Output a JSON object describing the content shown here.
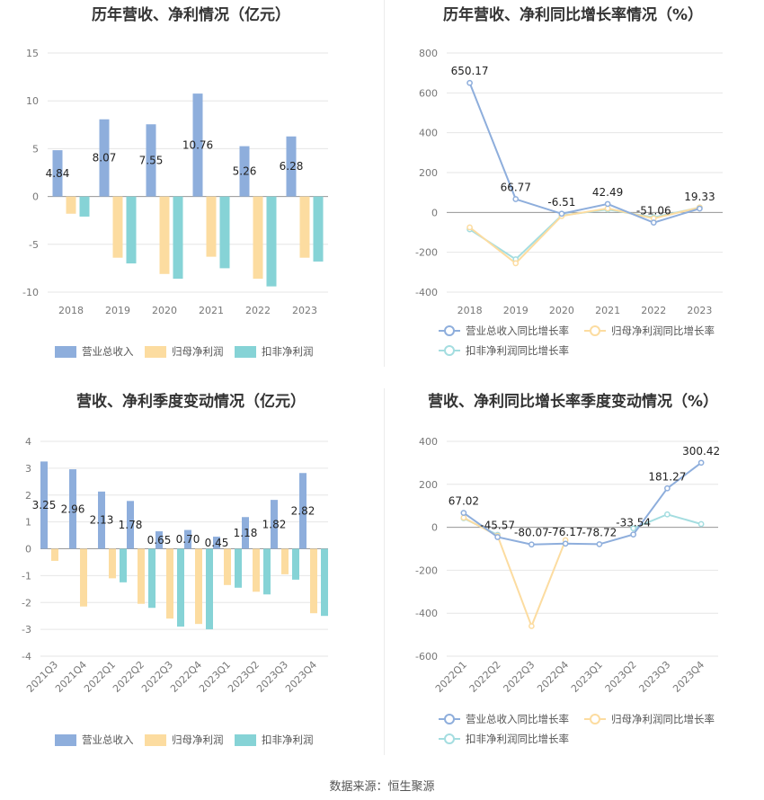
{
  "footer": {
    "source": "数据来源：恒生聚源"
  },
  "colors": {
    "revenue": "#8eaedc",
    "net_profit": "#fcdca0",
    "deducted": "#86d3d6",
    "revenue_line": "#8eaedc",
    "net_line": "#fcdca0",
    "deducted_line": "#a4dde0"
  },
  "chart_data": [
    {
      "type": "bar",
      "title": "历年营收、净利情况（亿元）",
      "categories": [
        "2018",
        "2019",
        "2020",
        "2021",
        "2022",
        "2023"
      ],
      "ylim": [
        -10,
        15
      ],
      "yticks": [
        -10,
        -5,
        0,
        5,
        10,
        15
      ],
      "series": [
        {
          "name": "营业总收入",
          "values": [
            4.84,
            8.07,
            7.55,
            10.76,
            5.26,
            6.28
          ],
          "labels": [
            "4.84",
            "8.07",
            "7.55",
            "10.76",
            "5.26",
            "6.28"
          ]
        },
        {
          "name": "归母净利润",
          "values": [
            -1.8,
            -6.4,
            -8.1,
            -6.3,
            -8.6,
            -6.4
          ]
        },
        {
          "name": "扣非净利润",
          "values": [
            -2.1,
            -7.0,
            -8.6,
            -7.5,
            -9.4,
            -6.8
          ]
        }
      ],
      "legend": "bottom"
    },
    {
      "type": "line",
      "title": "历年营收、净利同比增长率情况（%）",
      "categories": [
        "2018",
        "2019",
        "2020",
        "2021",
        "2022",
        "2023"
      ],
      "ylim": [
        -400,
        800
      ],
      "yticks": [
        -400,
        -200,
        0,
        200,
        400,
        600,
        800
      ],
      "series": [
        {
          "name": "营业总收入同比增长率",
          "values": [
            650.17,
            66.77,
            -6.51,
            42.49,
            -51.06,
            19.33
          ],
          "labels": [
            "650.17",
            "66.77",
            "-6.51",
            "42.49",
            "-51.06",
            "19.33"
          ]
        },
        {
          "name": "归母净利润同比增长率",
          "values": [
            -75,
            -255,
            -18,
            20,
            -30,
            25
          ]
        },
        {
          "name": "扣非净利润同比增长率",
          "values": [
            -85,
            -235,
            -15,
            15,
            -25,
            25
          ]
        }
      ],
      "legend": "bottom"
    },
    {
      "type": "bar",
      "title": "营收、净利季度变动情况（亿元）",
      "categories": [
        "2021Q3",
        "2021Q4",
        "2022Q1",
        "2022Q2",
        "2022Q3",
        "2022Q4",
        "2023Q1",
        "2023Q2",
        "2023Q3",
        "2023Q4"
      ],
      "ylim": [
        -4,
        4
      ],
      "yticks": [
        -4,
        -3,
        -2,
        -1,
        0,
        1,
        2,
        3,
        4
      ],
      "series": [
        {
          "name": "营业总收入",
          "values": [
            3.25,
            2.96,
            2.13,
            1.78,
            0.65,
            0.7,
            0.45,
            1.18,
            1.82,
            2.82
          ],
          "labels": [
            "3.25",
            "2.96",
            "2.13",
            "1.78",
            "0.65",
            "0.70",
            "0.45",
            "1.18",
            "1.82",
            "2.82"
          ]
        },
        {
          "name": "归母净利润",
          "values": [
            -0.45,
            -2.15,
            -1.1,
            -2.05,
            -2.6,
            -2.8,
            -1.35,
            -1.6,
            -0.95,
            -2.4
          ]
        },
        {
          "name": "扣非净利润",
          "values": [
            0,
            0,
            -1.25,
            -2.2,
            -2.9,
            -3.0,
            -1.45,
            -1.7,
            -1.15,
            -2.5
          ]
        }
      ],
      "legend": "bottom"
    },
    {
      "type": "line",
      "title": "营收、净利同比增长率季度变动情况（%）",
      "categories": [
        "2022Q1",
        "2022Q2",
        "2022Q3",
        "2022Q4",
        "2023Q1",
        "2023Q2",
        "2023Q3",
        "2023Q4"
      ],
      "ylim": [
        -600,
        400
      ],
      "yticks": [
        -600,
        -400,
        -200,
        0,
        200,
        400
      ],
      "series": [
        {
          "name": "营业总收入同比增长率",
          "values": [
            67.02,
            -45.57,
            -80.07,
            -76.17,
            -78.72,
            -33.54,
            181.27,
            300.42
          ],
          "labels": [
            "67.02",
            "-45.57",
            "-80.07",
            "-76.17",
            "-78.72",
            "-33.54",
            "181.27",
            "300.42"
          ]
        },
        {
          "name": "归母净利润同比增长率",
          "values": [
            45,
            -40,
            -460,
            -60,
            null,
            null,
            null,
            null
          ]
        },
        {
          "name": "扣非净利润同比增长率",
          "values": [
            42,
            -35,
            null,
            null,
            null,
            -5,
            60,
            15
          ]
        }
      ],
      "legend": "bottom"
    }
  ]
}
